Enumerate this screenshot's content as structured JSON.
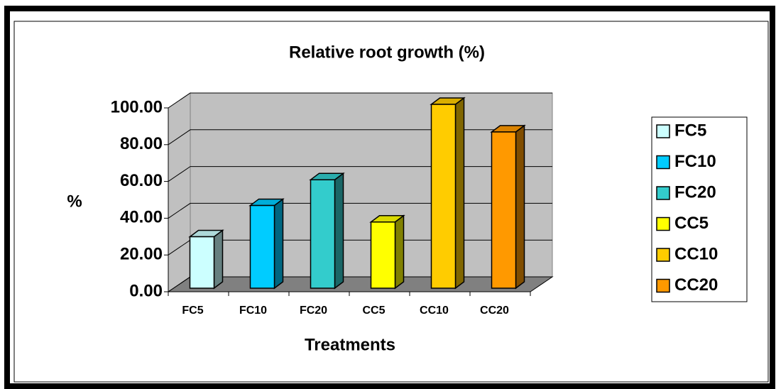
{
  "chart_data": {
    "type": "bar3d",
    "title": "Relative root growth (%)",
    "x_label": "Treatments",
    "y_label": "%",
    "categories": [
      "FC5",
      "FC10",
      "FC20",
      "CC5",
      "CC10",
      "CC20"
    ],
    "values": [
      28,
      45,
      59,
      36,
      100,
      85
    ],
    "colors": [
      "#ccffff",
      "#00ccff",
      "#33cccc",
      "#ffff00",
      "#ffcc00",
      "#ff9900"
    ],
    "ylim": [
      0,
      100
    ],
    "yticks": [
      {
        "value": 0,
        "label": "0.00"
      },
      {
        "value": 20,
        "label": "20.00"
      },
      {
        "value": 40,
        "label": "40.00"
      },
      {
        "value": 60,
        "label": "60.00"
      },
      {
        "value": 80,
        "label": "80.00"
      },
      {
        "value": 100,
        "label": "100.00"
      }
    ],
    "grid": true,
    "legend": "right"
  }
}
